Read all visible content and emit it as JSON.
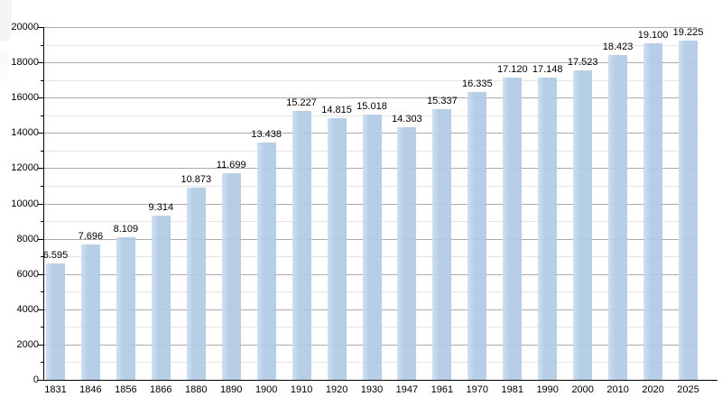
{
  "chart_data": {
    "type": "bar",
    "title": "",
    "xlabel": "",
    "ylabel": "",
    "categories": [
      "1831",
      "1846",
      "1856",
      "1866",
      "1880",
      "1890",
      "1900",
      "1910",
      "1920",
      "1930",
      "1947",
      "1961",
      "1970",
      "1981",
      "1990",
      "2000",
      "2010",
      "2020",
      "2025"
    ],
    "values": [
      6595,
      7696,
      8109,
      9314,
      10873,
      11699,
      13438,
      15227,
      14815,
      15018,
      14303,
      15337,
      16335,
      17120,
      17148,
      17523,
      18423,
      19100,
      19225
    ],
    "bar_labels": [
      "6.595",
      "7.696",
      "8.109",
      "9.314",
      "10.873",
      "11.699",
      "13.438",
      "15.227",
      "14.815",
      "15.018",
      "14.303",
      "15.337",
      "16.335",
      "17.120",
      "17.148",
      "17.523",
      "18.423",
      "19.100",
      "19.225"
    ],
    "ylim": [
      0,
      20000
    ],
    "y_major_step": 2000,
    "y_minor_step": 1000,
    "y_tick_labels": [
      "0",
      "2000",
      "4000",
      "6000",
      "8000",
      "10000",
      "12000",
      "14000",
      "16000",
      "18000",
      "20000"
    ],
    "grid": "horizontal major and minor gridlines",
    "legend": null,
    "colors": {
      "bar_fill": "#b0cbe5",
      "bar_fill_light": "#cdddee",
      "major_gridline": "#ababab",
      "minor_gridline": "#e4e4e4",
      "axis": "#000000",
      "label_text": "#000000",
      "background": "#ffffff"
    }
  }
}
